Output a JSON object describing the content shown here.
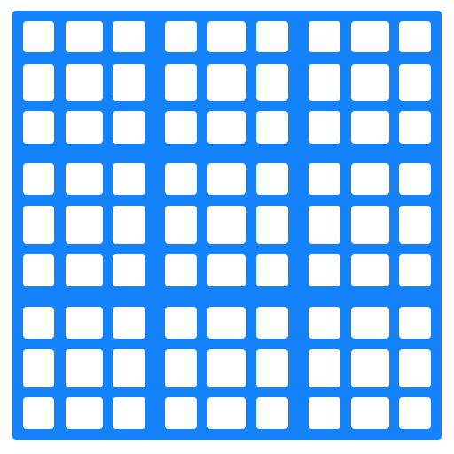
{
  "board": {
    "grid_size": 9,
    "box_size": 3,
    "grid_color": "#1382fb",
    "cell_color": "#ffffff",
    "cells": [
      [
        "",
        "",
        "",
        "",
        "",
        "",
        "",
        "",
        ""
      ],
      [
        "",
        "",
        "",
        "",
        "",
        "",
        "",
        "",
        ""
      ],
      [
        "",
        "",
        "",
        "",
        "",
        "",
        "",
        "",
        ""
      ],
      [
        "",
        "",
        "",
        "",
        "",
        "",
        "",
        "",
        ""
      ],
      [
        "",
        "",
        "",
        "",
        "",
        "",
        "",
        "",
        ""
      ],
      [
        "",
        "",
        "",
        "",
        "",
        "",
        "",
        "",
        ""
      ],
      [
        "",
        "",
        "",
        "",
        "",
        "",
        "",
        "",
        ""
      ],
      [
        "",
        "",
        "",
        "",
        "",
        "",
        "",
        "",
        ""
      ],
      [
        "",
        "",
        "",
        "",
        "",
        "",
        "",
        "",
        ""
      ]
    ]
  }
}
